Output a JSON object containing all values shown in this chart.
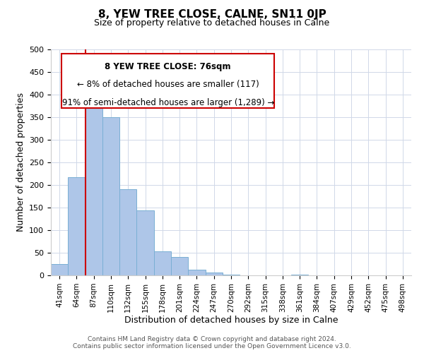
{
  "title": "8, YEW TREE CLOSE, CALNE, SN11 0JP",
  "subtitle": "Size of property relative to detached houses in Calne",
  "xlabel": "Distribution of detached houses by size in Calne",
  "ylabel": "Number of detached properties",
  "bar_values": [
    25,
    217,
    380,
    350,
    190,
    143,
    53,
    40,
    13,
    7,
    2,
    0,
    0,
    0,
    2,
    0,
    0,
    0,
    0,
    0,
    0
  ],
  "bar_labels": [
    "41sqm",
    "64sqm",
    "87sqm",
    "110sqm",
    "132sqm",
    "155sqm",
    "178sqm",
    "201sqm",
    "224sqm",
    "247sqm",
    "270sqm",
    "292sqm",
    "315sqm",
    "338sqm",
    "361sqm",
    "384sqm",
    "407sqm",
    "429sqm",
    "452sqm",
    "475sqm",
    "498sqm"
  ],
  "bar_color": "#aec6e8",
  "bar_edge_color": "#7aafd4",
  "vline_x": 1.5,
  "vline_color": "#cc0000",
  "ylim": [
    0,
    500
  ],
  "yticks": [
    0,
    50,
    100,
    150,
    200,
    250,
    300,
    350,
    400,
    450,
    500
  ],
  "annotation_title": "8 YEW TREE CLOSE: 76sqm",
  "annotation_line1": "← 8% of detached houses are smaller (117)",
  "annotation_line2": "91% of semi-detached houses are larger (1,289) →",
  "annotation_box_color": "#ffffff",
  "annotation_box_edge": "#cc0000",
  "footer1": "Contains HM Land Registry data © Crown copyright and database right 2024.",
  "footer2": "Contains public sector information licensed under the Open Government Licence v3.0.",
  "background_color": "#ffffff",
  "grid_color": "#d0d8e8"
}
